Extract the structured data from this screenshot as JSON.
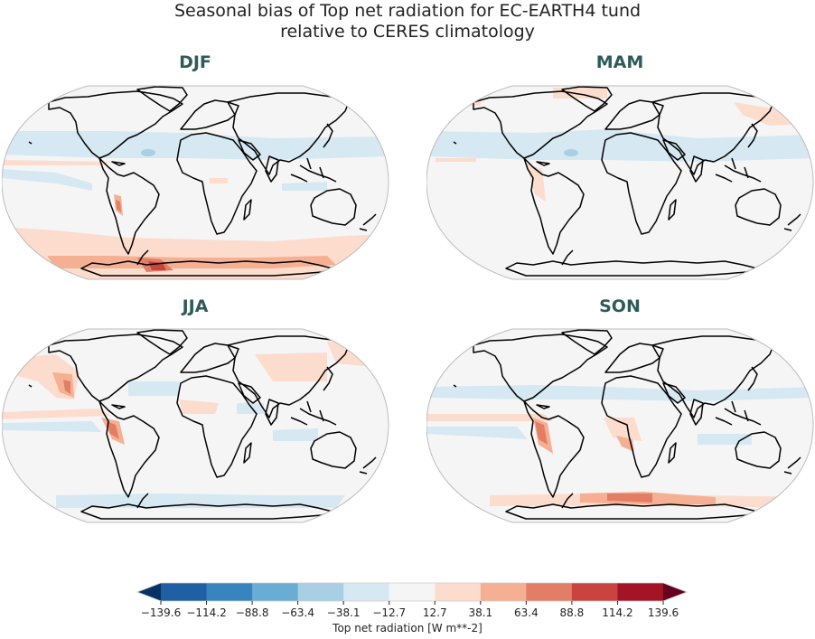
{
  "title": {
    "line1": "Seasonal bias of Top net radiation for EC-EARTH4 tund",
    "line2": "relative to CERES climatology"
  },
  "panels": [
    {
      "label": "DJF"
    },
    {
      "label": "MAM"
    },
    {
      "label": "JJA"
    },
    {
      "label": "SON"
    }
  ],
  "colorbar": {
    "label": "Top net radiation [W m**-2]",
    "ticks": [
      "−139.6",
      "−114.2",
      "−88.8",
      "−63.4",
      "−38.1",
      "−12.7",
      "12.7",
      "38.1",
      "63.4",
      "88.8",
      "114.2",
      "139.6"
    ],
    "colors": [
      "#063264",
      "#1f5fa3",
      "#3884bf",
      "#6aadd4",
      "#a8cfe4",
      "#d6e8f2",
      "#f5f5f5",
      "#fcdccd",
      "#f5b093",
      "#e27e65",
      "#c9433f",
      "#a41427",
      "#67001f"
    ],
    "extend": "both"
  },
  "chart_data": {
    "type": "heatmap",
    "title": "Seasonal bias of Top net radiation for EC-EARTH4 tund relative to CERES climatology",
    "panels": [
      "DJF",
      "MAM",
      "JJA",
      "SON"
    ],
    "projection": "Robinson (global)",
    "colorbar_label": "Top net radiation [W m**-2]",
    "levels": [
      -139.6,
      -114.2,
      -88.8,
      -63.4,
      -38.1,
      -12.7,
      12.7,
      38.1,
      63.4,
      88.8,
      114.2,
      139.6
    ],
    "vmin": -139.6,
    "vmax": 139.6,
    "colormap": "RdBu_r",
    "extend": "both",
    "notes": {
      "DJF": "Strong positive bias (up to ~90-115) over Southern Ocean near Antarctic Peninsula/Weddell Sea; weak negative bias (-12.7 to -38) in tropical Atlantic/Pacific belts; positive band along Peru/Chile coast.",
      "MAM": "Mostly near-zero; weak negative tropical belts; weak positive near NE Asia, Arctic edges and Andes.",
      "JJA": "Positive bias off California and Peru/Chile coasts (up to ~38-63); weak positive over Asia; weak negative over tropical Atlantic/Indian oceans.",
      "SON": "Positive bias band over Southern Ocean (up to ~63-88); positive along Peru/Chile and SW Africa coasts; weak negative tropical belts."
    }
  }
}
